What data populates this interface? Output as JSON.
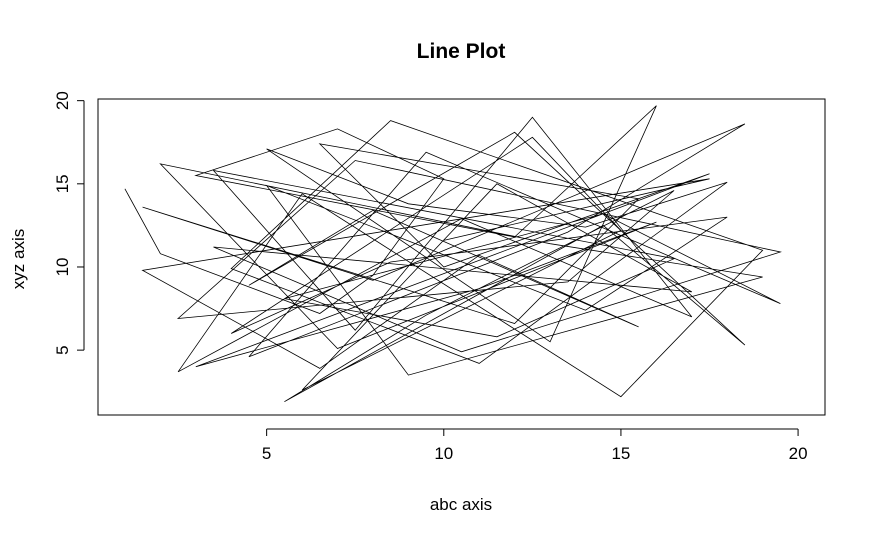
{
  "chart_data": {
    "type": "line",
    "title": "Line Plot",
    "xlabel": "abc axis",
    "ylabel": "xyz axis",
    "xlim": [
      0.24,
      20.76
    ],
    "ylim": [
      1.1,
      20.1
    ],
    "x_ticks": [
      5,
      10,
      15,
      20
    ],
    "y_ticks": [
      5,
      10,
      15,
      20
    ],
    "grid": false,
    "color": "#000000",
    "series": [
      {
        "x": [
          1.0,
          2.0,
          6.5,
          8.0,
          10.0,
          7.0,
          3.0,
          12.0,
          16.0,
          13.0,
          5.0,
          9.0,
          14.0,
          18.0,
          11.0,
          4.0,
          8.5,
          19.0,
          15.0,
          6.0,
          2.5,
          10.5,
          17.0,
          12.5,
          7.5,
          3.5,
          16.5,
          11.5,
          5.5,
          14.5,
          19.5,
          9.5,
          4.5,
          13.5,
          18.5,
          8.0,
          1.5,
          12.0,
          15.5,
          6.5,
          10.0,
          17.5,
          3.0,
          11.0,
          16.0,
          7.0,
          2.0,
          13.0,
          19.0,
          9.0,
          5.0,
          14.0,
          18.0,
          8.5,
          4.0,
          12.5,
          15.0,
          6.0,
          11.5,
          17.0,
          3.5,
          10.5,
          19.5,
          7.5,
          2.5,
          13.5,
          16.5,
          9.5,
          5.5,
          14.5,
          18.5,
          12.0,
          4.5,
          8.0,
          15.5,
          11.0,
          6.5,
          1.5,
          17.5,
          10.0
        ],
        "y": [
          14.7,
          10.8,
          7.2,
          9.5,
          15.3,
          18.3,
          15.5,
          11.8,
          19.7,
          5.5,
          17.1,
          13.8,
          12.4,
          15.1,
          4.2,
          9.9,
          18.8,
          11.0,
          2.2,
          14.4,
          3.7,
          12.9,
          7.0,
          19.0,
          6.2,
          15.8,
          10.5,
          5.8,
          8.1,
          13.2,
          7.8,
          16.9,
          4.6,
          12.1,
          18.6,
          9.2,
          13.6,
          6.6,
          14.1,
          17.4,
          10.0,
          15.6,
          4.0,
          8.7,
          12.7,
          5.1,
          16.2,
          11.4,
          9.4,
          3.5,
          14.9,
          7.4,
          13.0,
          10.3,
          6.0,
          17.8,
          12.2,
          2.6,
          15.0,
          8.5,
          11.2,
          4.9,
          10.9,
          16.4,
          6.9,
          9.1,
          14.6,
          7.1,
          1.9,
          12.5,
          5.3,
          18.1,
          8.9,
          13.4,
          6.4,
          10.7,
          3.9,
          9.8,
          15.3,
          11.6
        ]
      }
    ]
  }
}
